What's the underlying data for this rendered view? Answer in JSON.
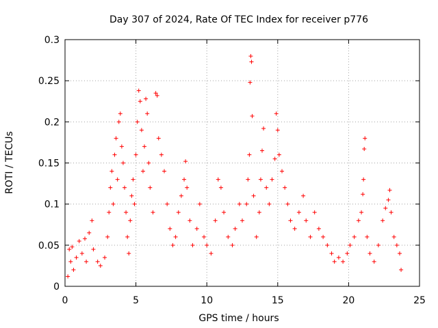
{
  "chart_data": {
    "type": "scatter",
    "title": "Day 307 of 2024, Rate Of TEC Index for receiver p776",
    "xlabel": "GPS time / hours",
    "ylabel": "ROTI / TECUs",
    "xlim": [
      0,
      25
    ],
    "ylim": [
      0,
      0.3
    ],
    "x_ticks": [
      0,
      5,
      10,
      15,
      20,
      25
    ],
    "x_tick_labels": [
      "0",
      "5",
      "10",
      "15",
      "20",
      "25"
    ],
    "y_ticks": [
      0,
      0.05,
      0.1,
      0.15,
      0.2,
      0.25,
      0.3
    ],
    "y_tick_labels": [
      "0",
      "0.05",
      "0.1",
      "0.15",
      "0.2",
      "0.25",
      "0.3"
    ],
    "grid": true,
    "marker": "+",
    "color": "#ff0000",
    "series": [
      {
        "name": "ROTI",
        "points": [
          [
            0.2,
            0.012
          ],
          [
            0.3,
            0.045
          ],
          [
            0.4,
            0.03
          ],
          [
            0.5,
            0.048
          ],
          [
            0.6,
            0.02
          ],
          [
            0.8,
            0.035
          ],
          [
            1.0,
            0.055
          ],
          [
            1.2,
            0.04
          ],
          [
            1.4,
            0.058
          ],
          [
            1.5,
            0.03
          ],
          [
            1.7,
            0.065
          ],
          [
            1.9,
            0.08
          ],
          [
            2.0,
            0.045
          ],
          [
            2.3,
            0.03
          ],
          [
            2.5,
            0.025
          ],
          [
            2.8,
            0.035
          ],
          [
            3.0,
            0.06
          ],
          [
            3.1,
            0.09
          ],
          [
            3.2,
            0.12
          ],
          [
            3.3,
            0.14
          ],
          [
            3.4,
            0.1
          ],
          [
            3.5,
            0.16
          ],
          [
            3.6,
            0.18
          ],
          [
            3.7,
            0.13
          ],
          [
            3.8,
            0.2
          ],
          [
            3.9,
            0.21
          ],
          [
            4.0,
            0.17
          ],
          [
            4.1,
            0.15
          ],
          [
            4.2,
            0.12
          ],
          [
            4.3,
            0.09
          ],
          [
            4.4,
            0.06
          ],
          [
            4.5,
            0.04
          ],
          [
            4.6,
            0.08
          ],
          [
            4.7,
            0.11
          ],
          [
            4.8,
            0.13
          ],
          [
            4.9,
            0.1
          ],
          [
            5.0,
            0.16
          ],
          [
            5.1,
            0.2
          ],
          [
            5.2,
            0.238
          ],
          [
            5.3,
            0.225
          ],
          [
            5.4,
            0.19
          ],
          [
            5.5,
            0.14
          ],
          [
            5.6,
            0.17
          ],
          [
            5.7,
            0.228
          ],
          [
            5.8,
            0.21
          ],
          [
            5.9,
            0.15
          ],
          [
            6.0,
            0.12
          ],
          [
            6.2,
            0.09
          ],
          [
            6.4,
            0.235
          ],
          [
            6.5,
            0.232
          ],
          [
            6.6,
            0.18
          ],
          [
            6.8,
            0.16
          ],
          [
            7.0,
            0.14
          ],
          [
            7.2,
            0.1
          ],
          [
            7.4,
            0.07
          ],
          [
            7.6,
            0.05
          ],
          [
            7.8,
            0.06
          ],
          [
            8.0,
            0.09
          ],
          [
            8.2,
            0.11
          ],
          [
            8.4,
            0.13
          ],
          [
            8.5,
            0.152
          ],
          [
            8.6,
            0.12
          ],
          [
            8.8,
            0.08
          ],
          [
            9.0,
            0.05
          ],
          [
            9.3,
            0.07
          ],
          [
            9.5,
            0.1
          ],
          [
            9.8,
            0.06
          ],
          [
            10.0,
            0.05
          ],
          [
            10.3,
            0.04
          ],
          [
            10.6,
            0.08
          ],
          [
            10.8,
            0.13
          ],
          [
            11.0,
            0.12
          ],
          [
            11.2,
            0.09
          ],
          [
            11.5,
            0.06
          ],
          [
            11.8,
            0.05
          ],
          [
            12.0,
            0.07
          ],
          [
            12.3,
            0.1
          ],
          [
            12.5,
            0.08
          ],
          [
            12.8,
            0.1
          ],
          [
            12.9,
            0.13
          ],
          [
            13.0,
            0.16
          ],
          [
            13.05,
            0.248
          ],
          [
            13.1,
            0.28
          ],
          [
            13.15,
            0.273
          ],
          [
            13.2,
            0.207
          ],
          [
            13.3,
            0.11
          ],
          [
            13.5,
            0.06
          ],
          [
            13.7,
            0.09
          ],
          [
            13.8,
            0.13
          ],
          [
            13.9,
            0.165
          ],
          [
            14.0,
            0.192
          ],
          [
            14.2,
            0.12
          ],
          [
            14.4,
            0.1
          ],
          [
            14.6,
            0.13
          ],
          [
            14.8,
            0.155
          ],
          [
            14.9,
            0.21
          ],
          [
            15.0,
            0.19
          ],
          [
            15.1,
            0.16
          ],
          [
            15.3,
            0.14
          ],
          [
            15.5,
            0.12
          ],
          [
            15.7,
            0.1
          ],
          [
            15.9,
            0.08
          ],
          [
            16.2,
            0.07
          ],
          [
            16.5,
            0.09
          ],
          [
            16.8,
            0.11
          ],
          [
            17.0,
            0.08
          ],
          [
            17.3,
            0.06
          ],
          [
            17.6,
            0.09
          ],
          [
            17.9,
            0.07
          ],
          [
            18.2,
            0.06
          ],
          [
            18.5,
            0.05
          ],
          [
            18.8,
            0.04
          ],
          [
            19.0,
            0.03
          ],
          [
            19.3,
            0.035
          ],
          [
            19.6,
            0.03
          ],
          [
            19.9,
            0.04
          ],
          [
            20.1,
            0.05
          ],
          [
            20.4,
            0.06
          ],
          [
            20.7,
            0.08
          ],
          [
            20.9,
            0.09
          ],
          [
            21.0,
            0.112
          ],
          [
            21.05,
            0.13
          ],
          [
            21.1,
            0.167
          ],
          [
            21.15,
            0.18
          ],
          [
            21.3,
            0.06
          ],
          [
            21.5,
            0.04
          ],
          [
            21.8,
            0.03
          ],
          [
            22.1,
            0.05
          ],
          [
            22.4,
            0.08
          ],
          [
            22.6,
            0.095
          ],
          [
            22.8,
            0.105
          ],
          [
            22.9,
            0.117
          ],
          [
            23.0,
            0.09
          ],
          [
            23.2,
            0.06
          ],
          [
            23.4,
            0.05
          ],
          [
            23.6,
            0.04
          ],
          [
            23.7,
            0.02
          ]
        ]
      }
    ]
  }
}
